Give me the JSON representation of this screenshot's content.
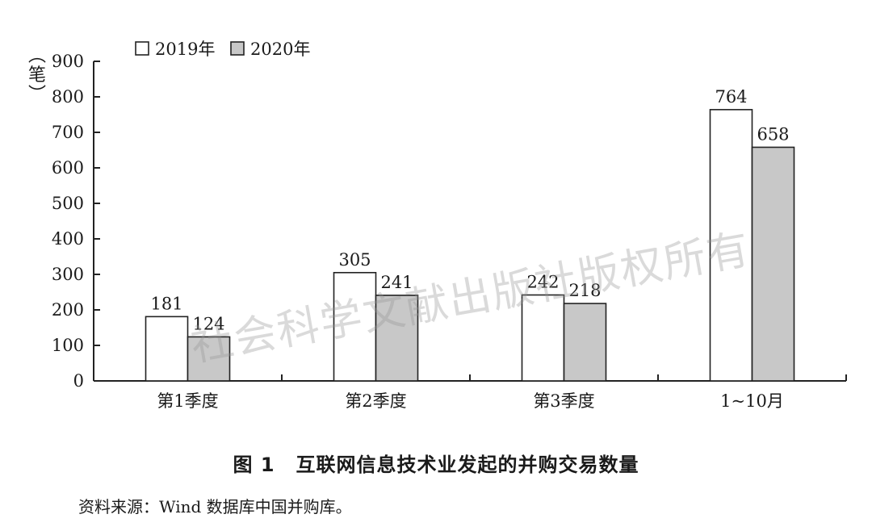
{
  "chart_data": {
    "type": "bar",
    "ylabel": "笔",
    "ylim": [
      0,
      900
    ],
    "yticks": [
      0,
      100,
      200,
      300,
      400,
      500,
      600,
      700,
      800,
      900
    ],
    "categories": [
      "第1季度",
      "第2季度",
      "第3季度",
      "1~10月"
    ],
    "legend_position": "top-left",
    "series": [
      {
        "name": "2019年",
        "values": [
          181,
          305,
          242,
          764
        ],
        "color": "#ffffff"
      },
      {
        "name": "2020年",
        "values": [
          124,
          241,
          218,
          658
        ],
        "color": "#c8c8c8"
      }
    ]
  },
  "caption": {
    "number": "图 1",
    "title": "互联网信息技术业发起的并购交易数量"
  },
  "source": "资料来源：Wind 数据库中国并购库。",
  "watermark": "社会科学文献出版社版权所有"
}
